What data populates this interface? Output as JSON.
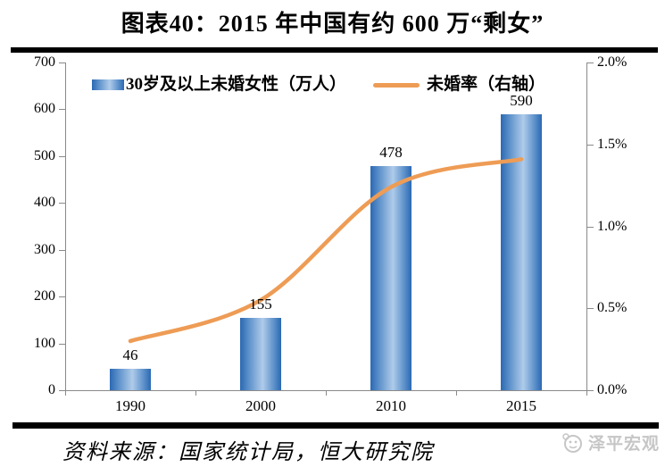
{
  "title": "图表40：2015 年中国有约 600 万“剩女”",
  "chart_data": {
    "type": "bar",
    "categories": [
      "1990",
      "2000",
      "2010",
      "2015"
    ],
    "series": [
      {
        "name": "30岁及以上未婚女性（万人）",
        "kind": "bar",
        "axis": "left",
        "values": [
          46,
          155,
          478,
          590
        ]
      },
      {
        "name": "未婚率（右轴）",
        "kind": "line",
        "axis": "right",
        "values": [
          0.3,
          0.55,
          1.24,
          1.41
        ],
        "unit": "%"
      }
    ],
    "left_axis": {
      "min": 0,
      "max": 700,
      "tick_labels": [
        "0",
        "100",
        "200",
        "300",
        "400",
        "500",
        "600",
        "700"
      ]
    },
    "right_axis": {
      "min": 0,
      "max": 2,
      "tick_labels": [
        "0.0%",
        "0.5%",
        "1.0%",
        "1.5%",
        "2.0%"
      ]
    },
    "legend_position": "top",
    "grid": false
  },
  "footer": {
    "source": "资料来源：国家统计局，恒大研究院",
    "logo_text": "泽平宏观"
  },
  "colors": {
    "bar_edge": "#2B69B3",
    "bar_center": "#AFCBEA",
    "line": "#EE9C55",
    "axis": "#8A8A8A",
    "divider": "#000000",
    "logo_gray": "#C6C6C6"
  }
}
